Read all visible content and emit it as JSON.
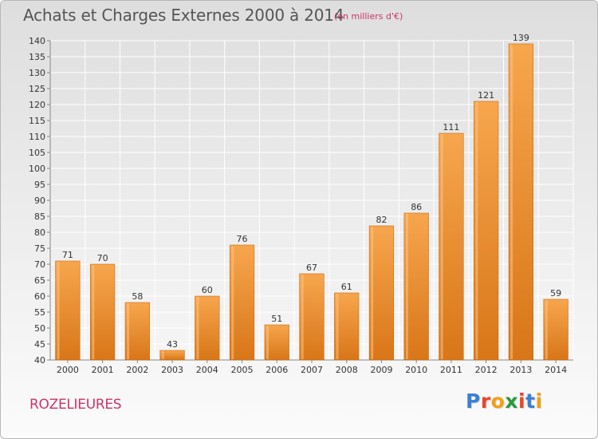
{
  "header": {
    "title": "Achats et Charges Externes 2000 à 2014",
    "subtitle": "(en milliers d'€)"
  },
  "footer": {
    "commune": "ROZELIEURES",
    "brand": "Proxiti",
    "brand_letters": [
      "P",
      "r",
      "o",
      "x",
      "i",
      "t",
      "i"
    ],
    "brand_colors": [
      "#3a7fd5",
      "#e8462a",
      "#f2a017",
      "#2a9a3a",
      "#e8462a",
      "#3a7fd5",
      "#f2a017"
    ]
  },
  "colors": {
    "bar_light": "#f7a64e",
    "bar_dark": "#d87618",
    "bar_edge": "#c96a10",
    "grid": "#ffffff",
    "accent": "#cc3366"
  },
  "chart_data": {
    "type": "bar",
    "title": "Achats et Charges Externes 2000 à 2014",
    "subtitle": "(en milliers d'€)",
    "categories": [
      "2000",
      "2001",
      "2002",
      "2003",
      "2004",
      "2005",
      "2006",
      "2007",
      "2008",
      "2009",
      "2010",
      "2011",
      "2012",
      "2013",
      "2014"
    ],
    "values": [
      71,
      70,
      58,
      43,
      60,
      76,
      51,
      67,
      61,
      82,
      86,
      111,
      121,
      139,
      59
    ],
    "value_labels": [
      "71",
      "70",
      "58",
      "43",
      "60",
      "76",
      "51",
      "67",
      "61",
      "82",
      "86",
      "111",
      "121",
      "139",
      "59"
    ],
    "ylim": [
      40,
      140
    ],
    "yticks": [
      40,
      45,
      50,
      55,
      60,
      65,
      70,
      75,
      80,
      85,
      90,
      95,
      100,
      105,
      110,
      115,
      120,
      125,
      130,
      135,
      140
    ],
    "grid": true,
    "legend": "none"
  }
}
